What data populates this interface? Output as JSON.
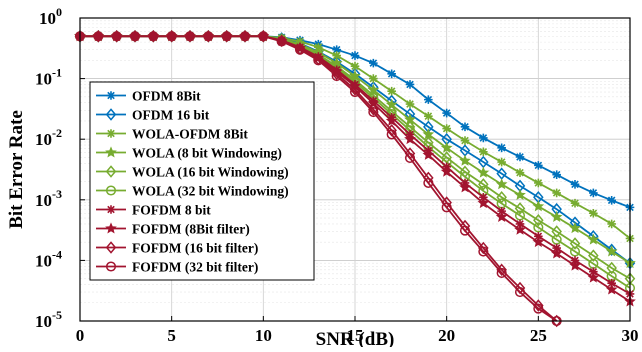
{
  "chart_data": {
    "type": "line",
    "xlabel": "SNR (dB)",
    "ylabel": "Bit Error Rate",
    "xlim": [
      0,
      30
    ],
    "ylim": [
      1e-05,
      1
    ],
    "yscale": "log",
    "x_ticks": [
      "0",
      "5",
      "10",
      "15",
      "20",
      "25",
      "30"
    ],
    "y_ticks": [
      {
        "base": "10",
        "exp": "0"
      },
      {
        "base": "10",
        "exp": "-1"
      },
      {
        "base": "10",
        "exp": "-2"
      },
      {
        "base": "10",
        "exp": "-3"
      },
      {
        "base": "10",
        "exp": "-4"
      },
      {
        "base": "10",
        "exp": "-5"
      }
    ],
    "grid": true,
    "legend_position": "bottom-left",
    "x": [
      0,
      1,
      2,
      3,
      4,
      5,
      6,
      7,
      8,
      9,
      10,
      11,
      12,
      13,
      14,
      15,
      16,
      17,
      18,
      19,
      20,
      21,
      22,
      23,
      24,
      25,
      26,
      27,
      28,
      29,
      30
    ],
    "series": [
      {
        "name": "OFDM 8Bit",
        "color": "#0072BD",
        "marker": "asterisk",
        "values": [
          0.5,
          0.5,
          0.5,
          0.5,
          0.5,
          0.5,
          0.5,
          0.5,
          0.5,
          0.5,
          0.5,
          0.48,
          0.43,
          0.37,
          0.3,
          0.24,
          0.18,
          0.12,
          0.08,
          0.045,
          0.027,
          0.016,
          0.0105,
          0.0072,
          0.0051,
          0.0037,
          0.0026,
          0.0018,
          0.0013,
          0.00098,
          0.00075
        ]
      },
      {
        "name": "OFDM 16 bit",
        "color": "#0072BD",
        "marker": "diamond",
        "values": [
          0.5,
          0.5,
          0.5,
          0.5,
          0.5,
          0.5,
          0.5,
          0.5,
          0.5,
          0.5,
          0.5,
          0.46,
          0.38,
          0.28,
          0.19,
          0.12,
          0.072,
          0.043,
          0.026,
          0.016,
          0.01,
          0.0065,
          0.0042,
          0.0027,
          0.0017,
          0.0011,
          0.0007,
          0.00042,
          0.00025,
          0.00015,
          9e-05
        ]
      },
      {
        "name": "WOLA-OFDM 8Bit",
        "color": "#77AC30",
        "marker": "asterisk",
        "values": [
          0.5,
          0.5,
          0.5,
          0.5,
          0.5,
          0.5,
          0.5,
          0.5,
          0.5,
          0.5,
          0.5,
          0.47,
          0.41,
          0.33,
          0.24,
          0.16,
          0.1,
          0.062,
          0.038,
          0.024,
          0.015,
          0.0095,
          0.0062,
          0.0042,
          0.0028,
          0.0019,
          0.0013,
          0.00088,
          0.0006,
          0.0004,
          0.00023
        ]
      },
      {
        "name": "WOLA (8 bit Windowing)",
        "color": "#77AC30",
        "marker": "star",
        "values": [
          0.5,
          0.5,
          0.5,
          0.5,
          0.5,
          0.5,
          0.5,
          0.5,
          0.5,
          0.5,
          0.5,
          0.45,
          0.37,
          0.27,
          0.18,
          0.11,
          0.065,
          0.037,
          0.021,
          0.012,
          0.0072,
          0.0044,
          0.0028,
          0.0018,
          0.0012,
          0.00078,
          0.00052,
          0.00034,
          0.00022,
          0.00014,
          9e-05
        ]
      },
      {
        "name": "WOLA (16 bit Windowing)",
        "color": "#77AC30",
        "marker": "diamond",
        "values": [
          0.5,
          0.5,
          0.5,
          0.5,
          0.5,
          0.5,
          0.5,
          0.5,
          0.5,
          0.5,
          0.5,
          0.44,
          0.35,
          0.25,
          0.16,
          0.095,
          0.053,
          0.029,
          0.016,
          0.0088,
          0.005,
          0.0029,
          0.0018,
          0.0011,
          0.00072,
          0.00046,
          0.0003,
          0.00019,
          0.00012,
          7.5e-05,
          5e-05
        ]
      },
      {
        "name": "WOLA (32 bit Windowing)",
        "color": "#77AC30",
        "marker": "circle",
        "values": [
          0.5,
          0.5,
          0.5,
          0.5,
          0.5,
          0.5,
          0.5,
          0.5,
          0.5,
          0.5,
          0.5,
          0.44,
          0.34,
          0.24,
          0.15,
          0.088,
          0.048,
          0.026,
          0.014,
          0.0075,
          0.0042,
          0.0024,
          0.0014,
          0.00087,
          0.00055,
          0.00035,
          0.00022,
          0.00014,
          8.8e-05,
          5.5e-05,
          3.5e-05
        ]
      },
      {
        "name": "FOFDM 8 bit",
        "color": "#A2142F",
        "marker": "asterisk",
        "values": [
          0.5,
          0.5,
          0.5,
          0.5,
          0.5,
          0.5,
          0.5,
          0.5,
          0.5,
          0.5,
          0.5,
          0.43,
          0.33,
          0.23,
          0.14,
          0.08,
          0.043,
          0.023,
          0.012,
          0.0065,
          0.0035,
          0.0019,
          0.0011,
          0.00065,
          0.0004,
          0.00025,
          0.00016,
          0.0001,
          6.5e-05,
          4.2e-05,
          2.8e-05
        ]
      },
      {
        "name": "FOFDM (8Bit filter)",
        "color": "#A2142F",
        "marker": "star",
        "values": [
          0.5,
          0.5,
          0.5,
          0.5,
          0.5,
          0.5,
          0.5,
          0.5,
          0.5,
          0.5,
          0.5,
          0.42,
          0.32,
          0.22,
          0.13,
          0.075,
          0.039,
          0.02,
          0.01,
          0.0055,
          0.0029,
          0.0016,
          0.00088,
          0.00052,
          0.00032,
          0.0002,
          0.00013,
          8.2e-05,
          5.2e-05,
          3.3e-05,
          2.1e-05
        ]
      },
      {
        "name": "FOFDM (16 bit filter)",
        "color": "#A2142F",
        "marker": "diamond",
        "values": [
          0.5,
          0.5,
          0.5,
          0.5,
          0.5,
          0.5,
          0.5,
          0.5,
          0.5,
          0.5,
          0.5,
          0.42,
          0.31,
          0.21,
          0.12,
          0.066,
          0.031,
          0.014,
          0.0058,
          0.0023,
          0.0009,
          0.00037,
          0.00016,
          7e-05,
          3.5e-05,
          1.8e-05,
          1e-05,
          null,
          null,
          null,
          null
        ]
      },
      {
        "name": "FOFDM (32 bit filter)",
        "color": "#A2142F",
        "marker": "circle",
        "values": [
          0.5,
          0.5,
          0.5,
          0.5,
          0.5,
          0.5,
          0.5,
          0.5,
          0.5,
          0.5,
          0.5,
          0.41,
          0.3,
          0.2,
          0.11,
          0.06,
          0.028,
          0.012,
          0.0049,
          0.0019,
          0.00075,
          0.00031,
          0.00014,
          6.2e-05,
          3e-05,
          1.6e-05,
          1e-05,
          null,
          null,
          null,
          null
        ]
      }
    ]
  }
}
